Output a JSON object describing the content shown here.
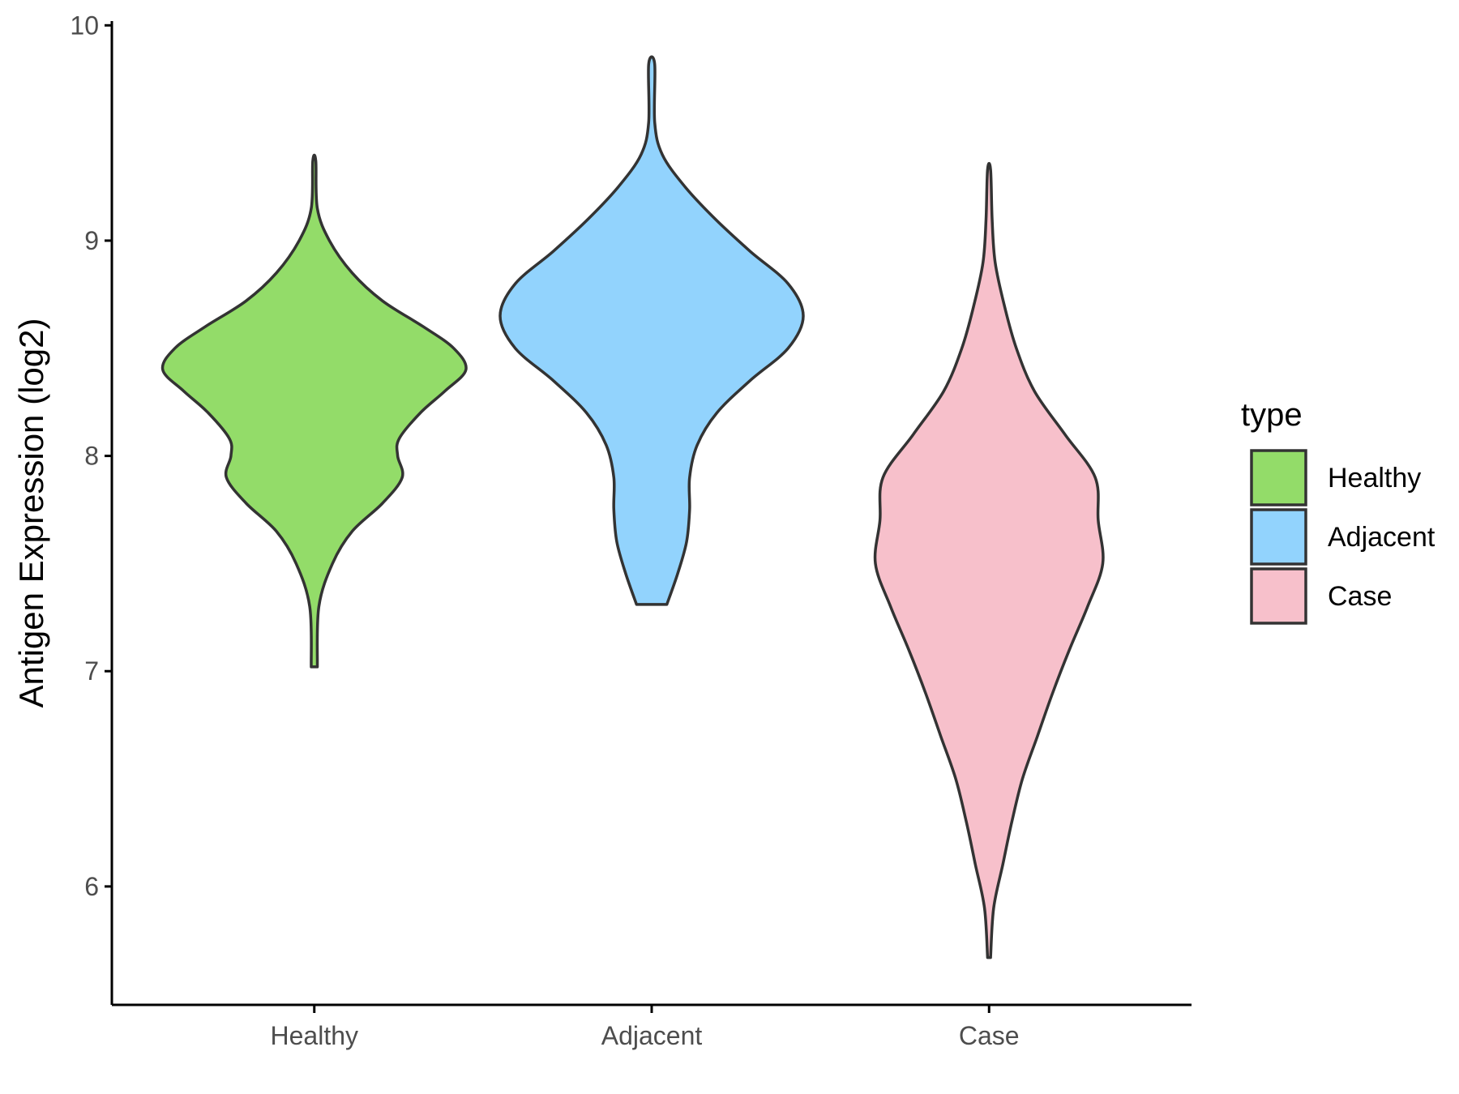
{
  "chart_data": {
    "type": "violin",
    "title": "",
    "xlabel": "",
    "ylabel": "Antigen Expression (log2)",
    "ylim": [
      5.45,
      10.05
    ],
    "yticks": [
      6,
      7,
      8,
      9,
      10
    ],
    "ytick_labels": [
      "6",
      "7",
      "8",
      "9",
      "10"
    ],
    "categories": [
      "Healthy",
      "Adjacent",
      "Case"
    ],
    "grid": false,
    "legend": {
      "title": "type",
      "position": "right",
      "entries": [
        {
          "label": "Healthy",
          "color": "#93dc69"
        },
        {
          "label": "Adjacent",
          "color": "#92d3fd"
        },
        {
          "label": "Case",
          "color": "#f7c0cb"
        }
      ]
    },
    "series": [
      {
        "category": "Healthy",
        "color": "#93dc69",
        "min": 7.02,
        "max": 9.37,
        "density_profile": [
          [
            7.02,
            0.02
          ],
          [
            7.3,
            0.03
          ],
          [
            7.5,
            0.12
          ],
          [
            7.65,
            0.25
          ],
          [
            7.78,
            0.45
          ],
          [
            7.9,
            0.58
          ],
          [
            8.0,
            0.55
          ],
          [
            8.08,
            0.56
          ],
          [
            8.2,
            0.7
          ],
          [
            8.3,
            0.86
          ],
          [
            8.4,
            1.0
          ],
          [
            8.5,
            0.92
          ],
          [
            8.6,
            0.72
          ],
          [
            8.72,
            0.45
          ],
          [
            8.85,
            0.25
          ],
          [
            9.0,
            0.1
          ],
          [
            9.15,
            0.02
          ],
          [
            9.37,
            0.01
          ]
        ]
      },
      {
        "category": "Adjacent",
        "color": "#92d3fd",
        "min": 7.31,
        "max": 9.82,
        "density_profile": [
          [
            7.31,
            0.1
          ],
          [
            7.45,
            0.17
          ],
          [
            7.6,
            0.23
          ],
          [
            7.75,
            0.25
          ],
          [
            7.9,
            0.25
          ],
          [
            8.05,
            0.3
          ],
          [
            8.2,
            0.43
          ],
          [
            8.35,
            0.65
          ],
          [
            8.5,
            0.9
          ],
          [
            8.65,
            1.0
          ],
          [
            8.8,
            0.9
          ],
          [
            8.95,
            0.65
          ],
          [
            9.1,
            0.42
          ],
          [
            9.25,
            0.22
          ],
          [
            9.4,
            0.07
          ],
          [
            9.55,
            0.02
          ],
          [
            9.82,
            0.02
          ]
        ]
      },
      {
        "category": "Case",
        "color": "#f7c0cb",
        "min": 5.67,
        "max": 9.33,
        "density_profile": [
          [
            5.67,
            0.01
          ],
          [
            5.9,
            0.03
          ],
          [
            6.1,
            0.09
          ],
          [
            6.3,
            0.15
          ],
          [
            6.5,
            0.22
          ],
          [
            6.7,
            0.32
          ],
          [
            6.9,
            0.42
          ],
          [
            7.1,
            0.53
          ],
          [
            7.3,
            0.65
          ],
          [
            7.5,
            0.75
          ],
          [
            7.7,
            0.72
          ],
          [
            7.9,
            0.7
          ],
          [
            8.1,
            0.5
          ],
          [
            8.3,
            0.3
          ],
          [
            8.5,
            0.18
          ],
          [
            8.7,
            0.1
          ],
          [
            8.9,
            0.04
          ],
          [
            9.1,
            0.02
          ],
          [
            9.33,
            0.01
          ]
        ]
      }
    ]
  }
}
